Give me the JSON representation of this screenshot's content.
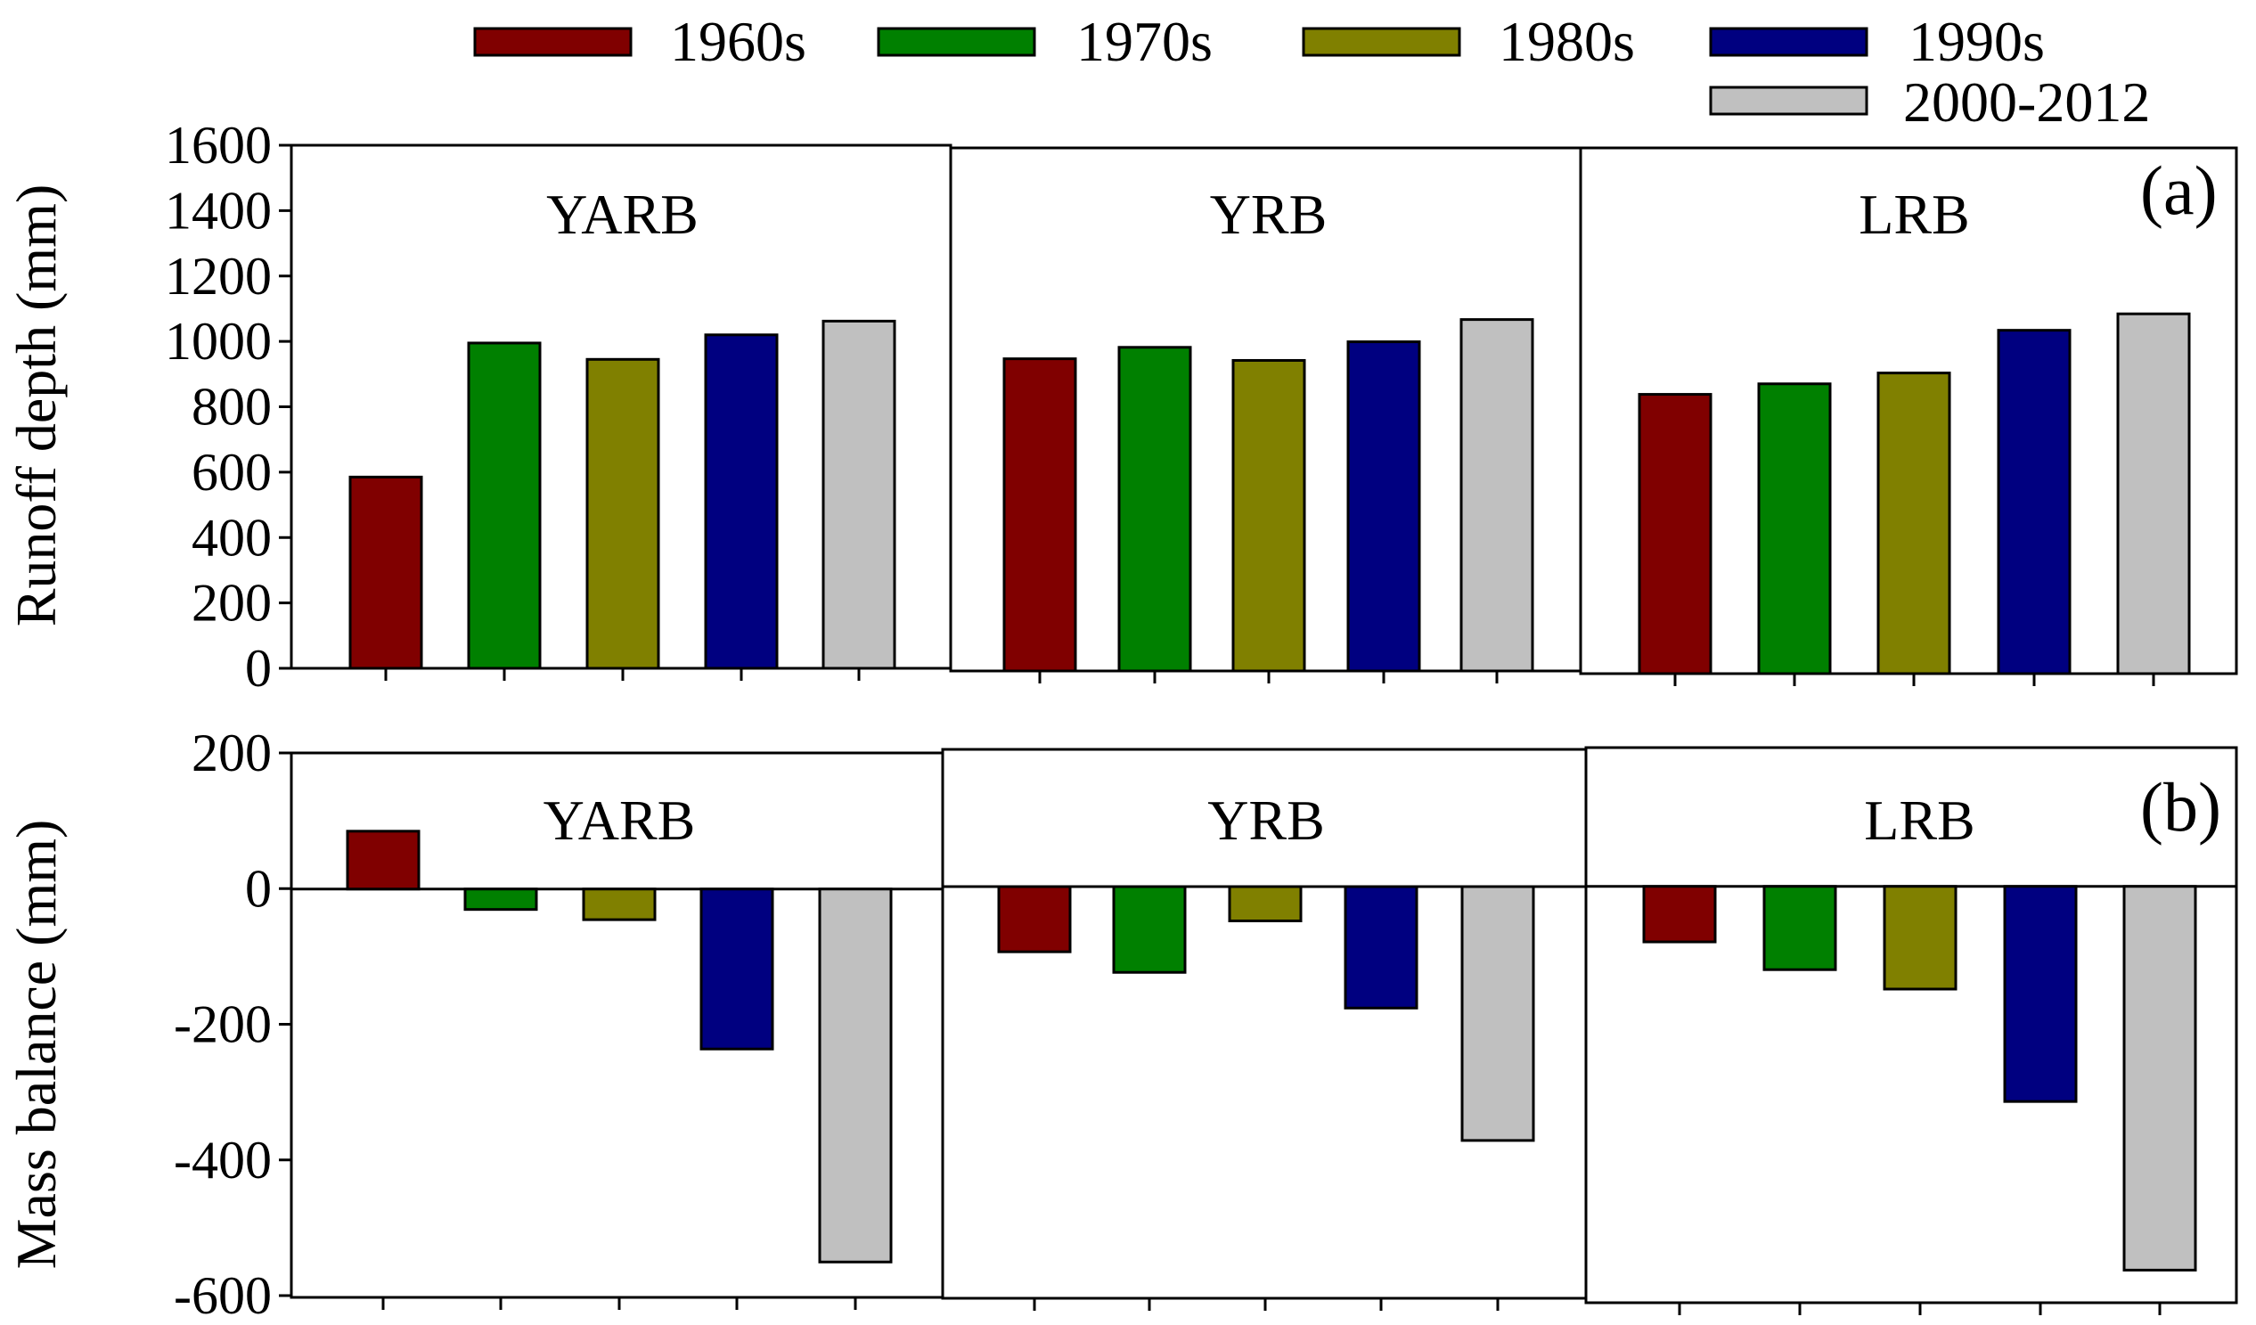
{
  "legend": [
    {
      "label": "1960s",
      "color": "#800000"
    },
    {
      "label": "1970s",
      "color": "#008000"
    },
    {
      "label": "1980s",
      "color": "#808000"
    },
    {
      "label": "1990s",
      "color": "#000080"
    },
    {
      "label": "2000-2012",
      "color": "#c0c0c0"
    }
  ],
  "chart_data": [
    {
      "type": "bar",
      "panel": "(a)",
      "ylabel": "Runoff depth (mm)",
      "ylim": [
        0,
        1600
      ],
      "yticks": [
        0,
        200,
        400,
        600,
        800,
        1000,
        1200,
        1400,
        1600
      ],
      "categories": [
        "1960s",
        "1970s",
        "1980s",
        "1990s",
        "2000-2012"
      ],
      "subplots": [
        {
          "title": "YARB",
          "values": [
            585,
            995,
            945,
            1020,
            1062
          ]
        },
        {
          "title": "YRB",
          "values": [
            955,
            990,
            950,
            1007,
            1075
          ]
        },
        {
          "title": "LRB",
          "values": [
            850,
            882,
            915,
            1045,
            1095
          ]
        }
      ]
    },
    {
      "type": "bar",
      "panel": "(b)",
      "ylabel": "Mass balance (mm)",
      "ylim": [
        -600,
        200
      ],
      "yticks": [
        -600,
        -400,
        -200,
        0,
        200
      ],
      "categories": [
        "1960s",
        "1970s",
        "1980s",
        "1990s",
        "2000-2012"
      ],
      "subplots": [
        {
          "title": "YARB",
          "values": [
            85,
            -30,
            -45,
            -235,
            -548
          ]
        },
        {
          "title": "YRB",
          "values": [
            -95,
            -125,
            -50,
            -177,
            -370
          ]
        },
        {
          "title": "LRB",
          "values": [
            -80,
            -120,
            -148,
            -310,
            -553
          ]
        }
      ]
    }
  ]
}
